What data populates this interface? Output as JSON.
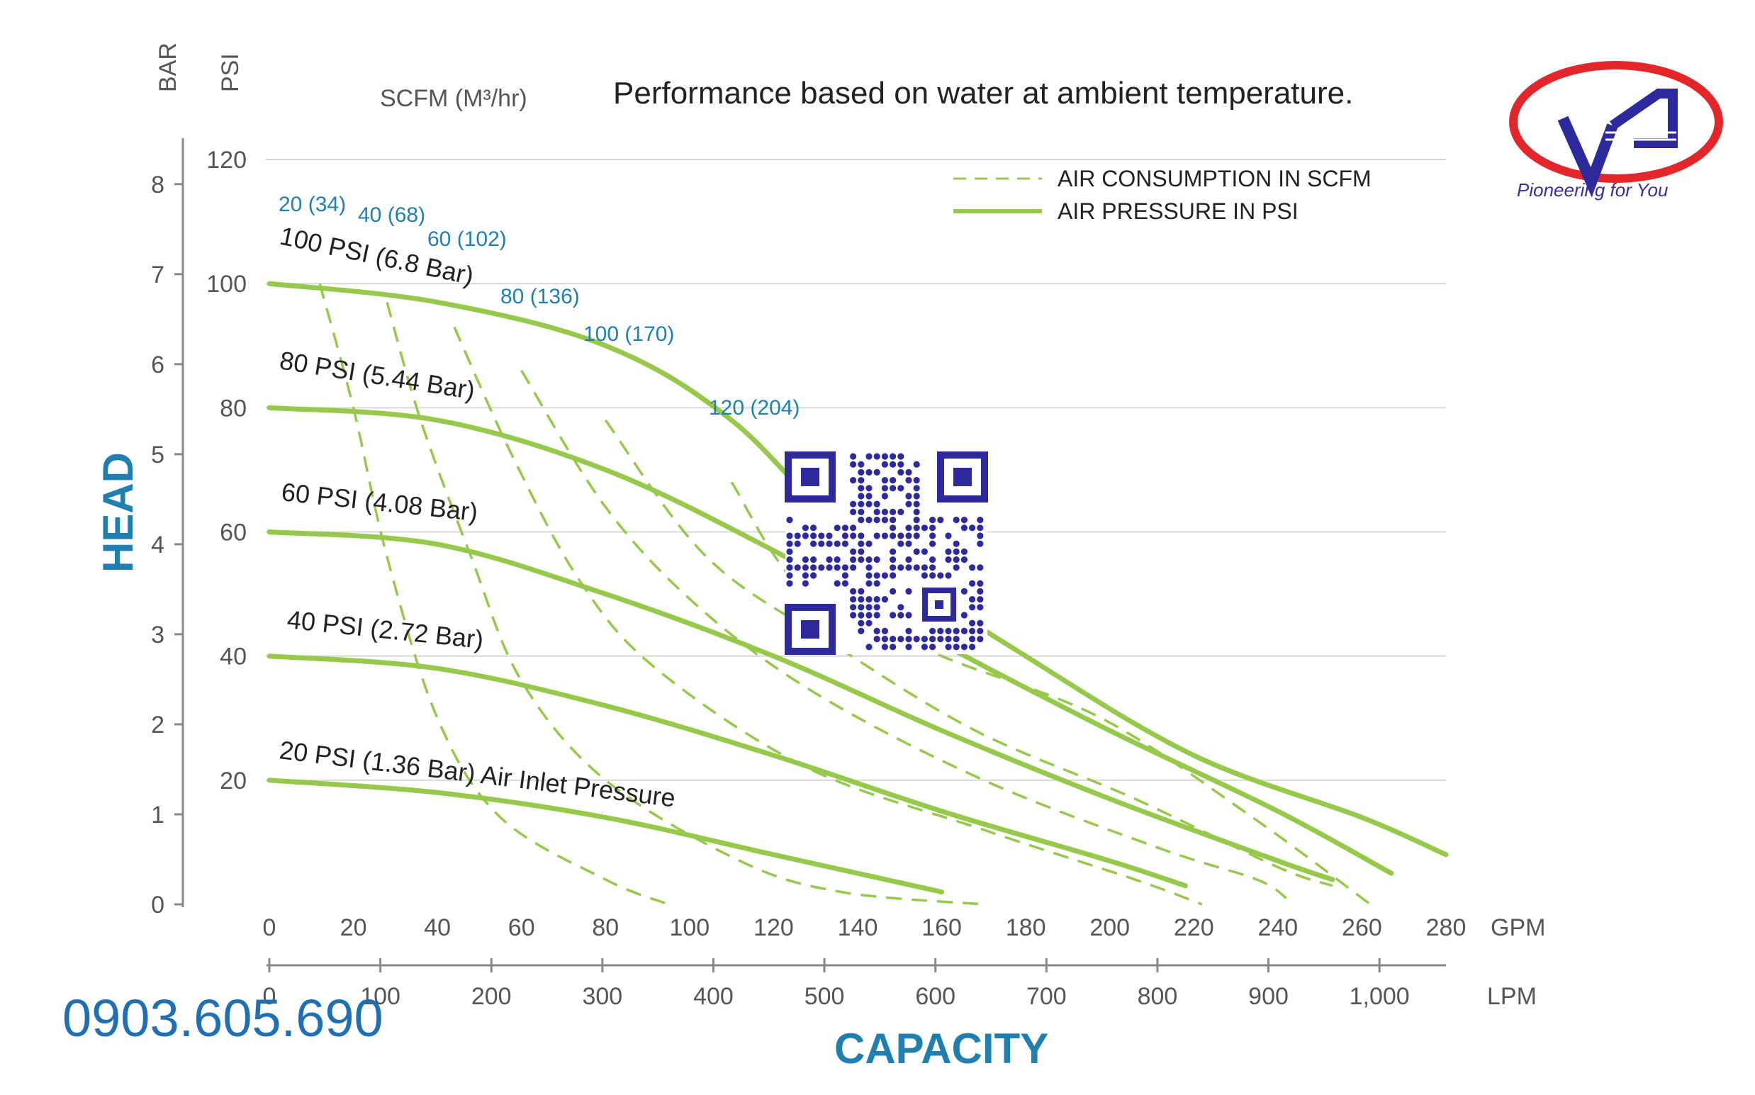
{
  "chart_data": {
    "type": "line",
    "title": "Performance based on water at ambient temperature.",
    "xlabel": "CAPACITY",
    "ylabel": "HEAD",
    "x_primary": {
      "unit": "GPM",
      "range": [
        0,
        280
      ],
      "ticks": [
        "0",
        "20",
        "40",
        "60",
        "80",
        "100",
        "120",
        "140",
        "160",
        "180",
        "200",
        "220",
        "240",
        "260",
        "280"
      ]
    },
    "x_secondary": {
      "unit": "LPM",
      "ticks": [
        "0",
        "100",
        "200",
        "300",
        "400",
        "500",
        "600",
        "700",
        "800",
        "900",
        "1,000"
      ],
      "tick_values": [
        0,
        100,
        200,
        300,
        400,
        500,
        600,
        700,
        800,
        900,
        1000
      ]
    },
    "y_left": {
      "unit": "BAR",
      "range": [
        0,
        8
      ],
      "ticks": [
        "0",
        "1",
        "2",
        "3",
        "4",
        "5",
        "6",
        "7",
        "8"
      ]
    },
    "y_right": {
      "unit": "PSI",
      "range": [
        0,
        120
      ],
      "ticks": [
        "20",
        "40",
        "60",
        "80",
        "100",
        "120"
      ],
      "tick_values": [
        20,
        40,
        60,
        80,
        100,
        120
      ]
    },
    "air_flow_header": "SCFM (M³/hr)",
    "grid": true,
    "legend": {
      "position": "top-right",
      "items": [
        {
          "label": "AIR CONSUMPTION IN SCFM",
          "style": "dashed"
        },
        {
          "label": "AIR PRESSURE IN PSI",
          "style": "solid"
        }
      ]
    },
    "series": [
      {
        "name": "100 PSI (6.8 Bar)",
        "points": [
          [
            0,
            100
          ],
          [
            40,
            97
          ],
          [
            80,
            90
          ],
          [
            110,
            78
          ],
          [
            140,
            58
          ],
          [
            180,
            40
          ],
          [
            220,
            24
          ],
          [
            260,
            14
          ],
          [
            280,
            8
          ]
        ]
      },
      {
        "name": "80 PSI (5.44 Bar)",
        "points": [
          [
            0,
            80
          ],
          [
            40,
            78
          ],
          [
            80,
            70
          ],
          [
            120,
            57
          ],
          [
            160,
            42
          ],
          [
            200,
            28
          ],
          [
            240,
            15
          ],
          [
            267,
            5
          ]
        ]
      },
      {
        "name": "60 PSI (4.08 Bar)",
        "points": [
          [
            0,
            60
          ],
          [
            40,
            58
          ],
          [
            80,
            50
          ],
          [
            120,
            40
          ],
          [
            160,
            28
          ],
          [
            200,
            17
          ],
          [
            240,
            7
          ],
          [
            253,
            4
          ]
        ]
      },
      {
        "name": "40 PSI (2.72 Bar)",
        "points": [
          [
            0,
            40
          ],
          [
            40,
            38
          ],
          [
            80,
            32
          ],
          [
            120,
            24
          ],
          [
            160,
            15
          ],
          [
            200,
            7
          ],
          [
            218,
            3
          ]
        ]
      },
      {
        "name": "20 PSI (1.36 Bar) Air Inlet Pressure",
        "points": [
          [
            0,
            20
          ],
          [
            40,
            18
          ],
          [
            80,
            14
          ],
          [
            120,
            8
          ],
          [
            160,
            2
          ]
        ]
      }
    ],
    "air_consumption": [
      {
        "name": "20 (34)",
        "points": [
          [
            12,
            100
          ],
          [
            20,
            80
          ],
          [
            28,
            56
          ],
          [
            40,
            30
          ],
          [
            55,
            14
          ],
          [
            80,
            4
          ],
          [
            95,
            0
          ]
        ]
      },
      {
        "name": "40 (68)",
        "points": [
          [
            28,
            97
          ],
          [
            36,
            78
          ],
          [
            48,
            56
          ],
          [
            60,
            36
          ],
          [
            80,
            20
          ],
          [
            112,
            7
          ],
          [
            136,
            2
          ],
          [
            170,
            0
          ]
        ]
      },
      {
        "name": "60 (102)",
        "points": [
          [
            44,
            93
          ],
          [
            58,
            72
          ],
          [
            74,
            52
          ],
          [
            92,
            38
          ],
          [
            128,
            22
          ],
          [
            170,
            12
          ],
          [
            206,
            4
          ],
          [
            222,
            0
          ]
        ]
      },
      {
        "name": "80 (136)",
        "points": [
          [
            60,
            86
          ],
          [
            80,
            64
          ],
          [
            102,
            48
          ],
          [
            130,
            34
          ],
          [
            170,
            20
          ],
          [
            212,
            9
          ],
          [
            235,
            4
          ],
          [
            242,
            1
          ]
        ]
      },
      {
        "name": "100 (170)",
        "points": [
          [
            80,
            78
          ],
          [
            104,
            56
          ],
          [
            134,
            42
          ],
          [
            168,
            28
          ],
          [
            206,
            17
          ],
          [
            240,
            6
          ],
          [
            253,
            3
          ]
        ]
      },
      {
        "name": "120 (204)",
        "points": [
          [
            110,
            68
          ],
          [
            128,
            50
          ],
          [
            160,
            40
          ],
          [
            198,
            30
          ],
          [
            234,
            14
          ],
          [
            262,
            0
          ]
        ]
      }
    ]
  },
  "watermark": {
    "phone": "0903.605.690",
    "logo_tagline": "Pioneering for You"
  }
}
